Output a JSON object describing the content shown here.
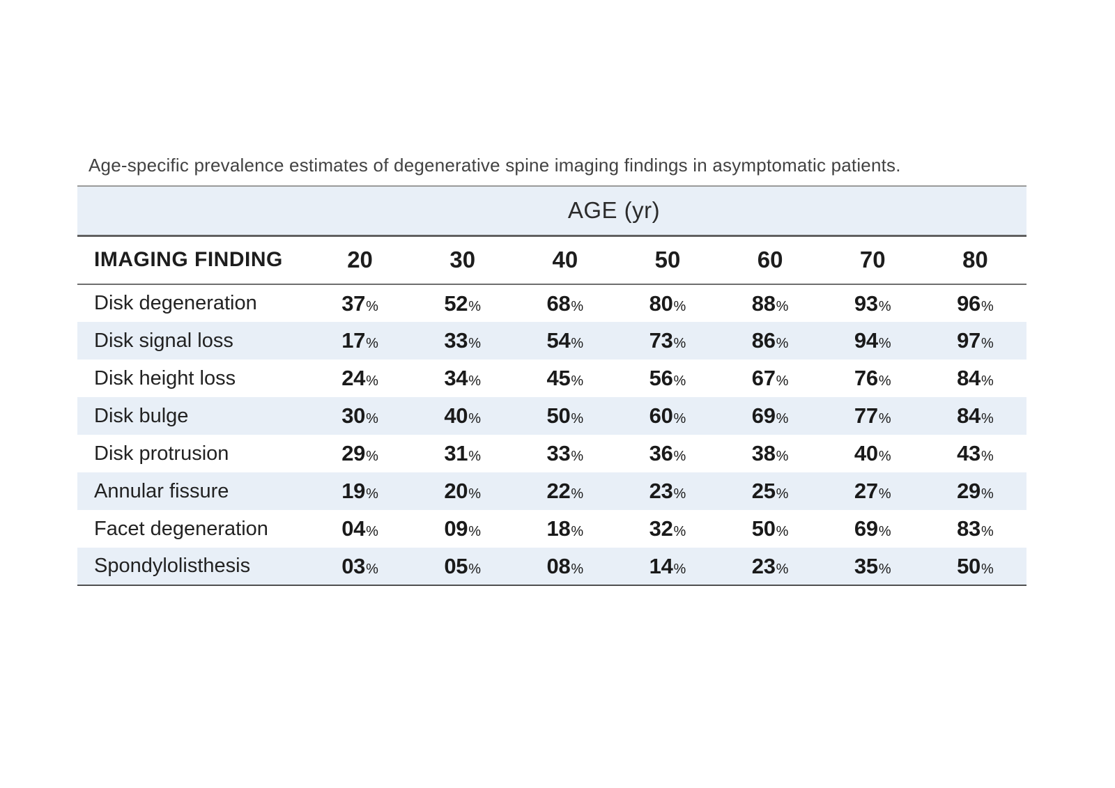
{
  "title": "Age-specific prevalence estimates of degenerative spine imaging findings in asymptomatic patients.",
  "table": {
    "age_header": "AGE (yr)",
    "finding_header": "IMAGING FINDING",
    "ages": [
      "20",
      "30",
      "40",
      "50",
      "60",
      "70",
      "80"
    ],
    "percent_sign": "%",
    "rows": [
      {
        "label": "Disk degeneration",
        "values": [
          "37",
          "52",
          "68",
          "80",
          "88",
          "93",
          "96"
        ]
      },
      {
        "label": "Disk signal loss",
        "values": [
          "17",
          "33",
          "54",
          "73",
          "86",
          "94",
          "97"
        ]
      },
      {
        "label": "Disk height loss",
        "values": [
          "24",
          "34",
          "45",
          "56",
          "67",
          "76",
          "84"
        ]
      },
      {
        "label": "Disk bulge",
        "values": [
          "30",
          "40",
          "50",
          "60",
          "69",
          "77",
          "84"
        ]
      },
      {
        "label": "Disk protrusion",
        "values": [
          "29",
          "31",
          "33",
          "36",
          "38",
          "40",
          "43"
        ]
      },
      {
        "label": "Annular fissure",
        "values": [
          "19",
          "20",
          "22",
          "23",
          "25",
          "27",
          "29"
        ]
      },
      {
        "label": "Facet degeneration",
        "values": [
          "04",
          "09",
          "18",
          "32",
          "50",
          "69",
          "83"
        ]
      },
      {
        "label": "Spondylolisthesis",
        "values": [
          "03",
          "05",
          "08",
          "14",
          "23",
          "35",
          "50"
        ]
      }
    ]
  },
  "colors": {
    "row_stripe": "#e8eff7",
    "text_dark": "#1a1a1a",
    "caption_gray": "#424242",
    "rule_gray": "#6e6e6e"
  },
  "chart_data": {
    "type": "table",
    "title": "Age-specific prevalence estimates of degenerative spine imaging findings in asymptomatic patients.",
    "column_group_header": "AGE (yr)",
    "row_header": "IMAGING FINDING",
    "columns_age_yr": [
      20,
      30,
      40,
      50,
      60,
      70,
      80
    ],
    "rows": [
      {
        "finding": "Disk degeneration",
        "prevalence_pct": [
          37,
          52,
          68,
          80,
          88,
          93,
          96
        ]
      },
      {
        "finding": "Disk signal loss",
        "prevalence_pct": [
          17,
          33,
          54,
          73,
          86,
          94,
          97
        ]
      },
      {
        "finding": "Disk height loss",
        "prevalence_pct": [
          24,
          34,
          45,
          56,
          67,
          76,
          84
        ]
      },
      {
        "finding": "Disk bulge",
        "prevalence_pct": [
          30,
          40,
          50,
          60,
          69,
          77,
          84
        ]
      },
      {
        "finding": "Disk protrusion",
        "prevalence_pct": [
          29,
          31,
          33,
          36,
          38,
          40,
          43
        ]
      },
      {
        "finding": "Annular fissure",
        "prevalence_pct": [
          19,
          20,
          22,
          23,
          25,
          27,
          29
        ]
      },
      {
        "finding": "Facet degeneration",
        "prevalence_pct": [
          4,
          9,
          18,
          32,
          50,
          69,
          83
        ]
      },
      {
        "finding": "Spondylolisthesis",
        "prevalence_pct": [
          3,
          5,
          8,
          14,
          23,
          35,
          50
        ]
      }
    ],
    "layout": {
      "striped_rows": true,
      "stripe_color": "#e8eff7",
      "values_unit": "%"
    }
  }
}
